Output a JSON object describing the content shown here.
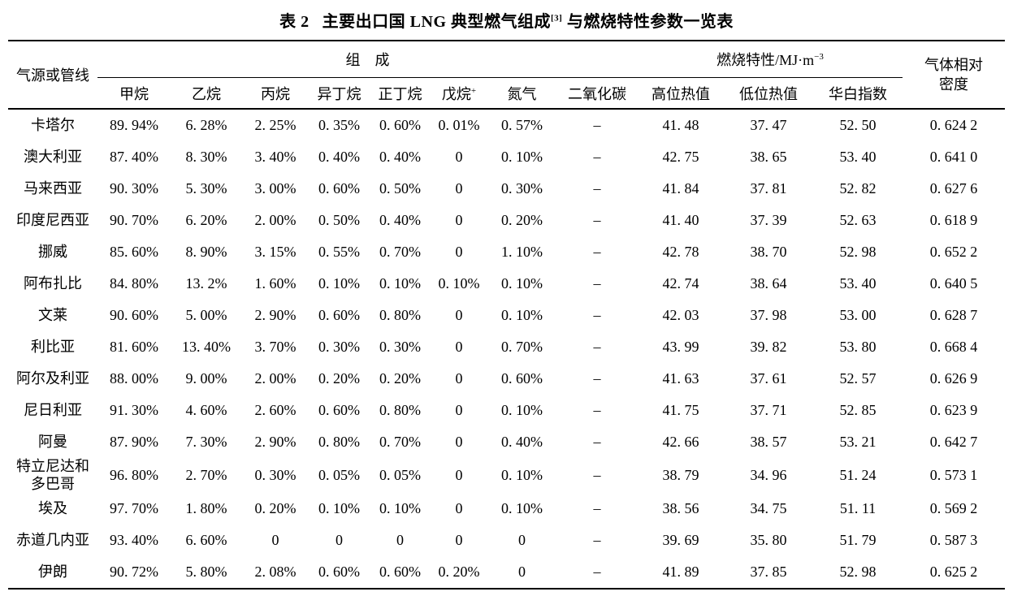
{
  "title": {
    "label": "表 2",
    "text": "主要出口国 LNG 典型燃气组成",
    "ref_sup": "[3]",
    "text_after": " 与燃烧特性参数一览表"
  },
  "table": {
    "header": {
      "row_label": "气源或管线",
      "composition_group": "组　成",
      "combustion_group": {
        "text": "燃烧特性/MJ·m",
        "sup": "−3"
      },
      "density": {
        "line1": "气体相对",
        "line2": "密度"
      },
      "composition_cols": [
        {
          "label": "甲烷",
          "sup": ""
        },
        {
          "label": "乙烷",
          "sup": ""
        },
        {
          "label": "丙烷",
          "sup": ""
        },
        {
          "label": "异丁烷",
          "sup": ""
        },
        {
          "label": "正丁烷",
          "sup": ""
        },
        {
          "label": "戊烷",
          "sup": "+"
        },
        {
          "label": "氮气",
          "sup": ""
        },
        {
          "label": "二氧化碳",
          "sup": ""
        }
      ],
      "combustion_cols": [
        "高位热值",
        "低位热值",
        "华白指数"
      ]
    },
    "rows": [
      {
        "name": "卡塔尔",
        "cells": [
          "89. 94%",
          "6. 28%",
          "2. 25%",
          "0. 35%",
          "0. 60%",
          "0. 01%",
          "0. 57%",
          "–",
          "41. 48",
          "37. 47",
          "52. 50",
          "0. 624 2"
        ]
      },
      {
        "name": "澳大利亚",
        "cells": [
          "87. 40%",
          "8. 30%",
          "3. 40%",
          "0. 40%",
          "0. 40%",
          "0",
          "0. 10%",
          "–",
          "42. 75",
          "38. 65",
          "53. 40",
          "0. 641 0"
        ]
      },
      {
        "name": "马来西亚",
        "cells": [
          "90. 30%",
          "5. 30%",
          "3. 00%",
          "0. 60%",
          "0. 50%",
          "0",
          "0. 30%",
          "–",
          "41. 84",
          "37. 81",
          "52. 82",
          "0. 627 6"
        ]
      },
      {
        "name": "印度尼西亚",
        "cells": [
          "90. 70%",
          "6. 20%",
          "2. 00%",
          "0. 50%",
          "0. 40%",
          "0",
          "0. 20%",
          "–",
          "41. 40",
          "37. 39",
          "52. 63",
          "0. 618 9"
        ]
      },
      {
        "name": "挪威",
        "cells": [
          "85. 60%",
          "8. 90%",
          "3. 15%",
          "0. 55%",
          "0. 70%",
          "0",
          "1. 10%",
          "–",
          "42. 78",
          "38. 70",
          "52. 98",
          "0. 652 2"
        ]
      },
      {
        "name": "阿布扎比",
        "cells": [
          "84. 80%",
          "13. 2%",
          "1. 60%",
          "0. 10%",
          "0. 10%",
          "0. 10%",
          "0. 10%",
          "–",
          "42. 74",
          "38. 64",
          "53. 40",
          "0. 640 5"
        ]
      },
      {
        "name": "文莱",
        "cells": [
          "90. 60%",
          "5. 00%",
          "2. 90%",
          "0. 60%",
          "0. 80%",
          "0",
          "0. 10%",
          "–",
          "42. 03",
          "37. 98",
          "53. 00",
          "0. 628 7"
        ]
      },
      {
        "name": "利比亚",
        "cells": [
          "81. 60%",
          "13. 40%",
          "3. 70%",
          "0. 30%",
          "0. 30%",
          "0",
          "0. 70%",
          "–",
          "43. 99",
          "39. 82",
          "53. 80",
          "0. 668 4"
        ]
      },
      {
        "name": "阿尔及利亚",
        "cells": [
          "88. 00%",
          "9. 00%",
          "2. 00%",
          "0. 20%",
          "0. 20%",
          "0",
          "0. 60%",
          "–",
          "41. 63",
          "37. 61",
          "52. 57",
          "0. 626 9"
        ]
      },
      {
        "name": "尼日利亚",
        "cells": [
          "91. 30%",
          "4. 60%",
          "2. 60%",
          "0. 60%",
          "0. 80%",
          "0",
          "0. 10%",
          "–",
          "41. 75",
          "37. 71",
          "52. 85",
          "0. 623 9"
        ]
      },
      {
        "name": "阿曼",
        "cells": [
          "87. 90%",
          "7. 30%",
          "2. 90%",
          "0. 80%",
          "0. 70%",
          "0",
          "0. 40%",
          "–",
          "42. 66",
          "38. 57",
          "53. 21",
          "0. 642 7"
        ]
      },
      {
        "name": "特立尼达和\n多巴哥",
        "cells": [
          "96. 80%",
          "2. 70%",
          "0. 30%",
          "0. 05%",
          "0. 05%",
          "0",
          "0. 10%",
          "–",
          "38. 79",
          "34. 96",
          "51. 24",
          "0. 573 1"
        ]
      },
      {
        "name": "埃及",
        "cells": [
          "97. 70%",
          "1. 80%",
          "0. 20%",
          "0. 10%",
          "0. 10%",
          "0",
          "0. 10%",
          "–",
          "38. 56",
          "34. 75",
          "51. 11",
          "0. 569 2"
        ]
      },
      {
        "name": "赤道几内亚",
        "cells": [
          "93. 40%",
          "6. 60%",
          "0",
          "0",
          "0",
          "0",
          "0",
          "–",
          "39. 69",
          "35. 80",
          "51. 79",
          "0. 587 3"
        ]
      },
      {
        "name": "伊朗",
        "cells": [
          "90. 72%",
          "5. 80%",
          "2. 08%",
          "0. 60%",
          "0. 60%",
          "0. 20%",
          "0",
          "–",
          "41. 89",
          "37. 85",
          "52. 98",
          "0. 625 2"
        ]
      }
    ]
  }
}
